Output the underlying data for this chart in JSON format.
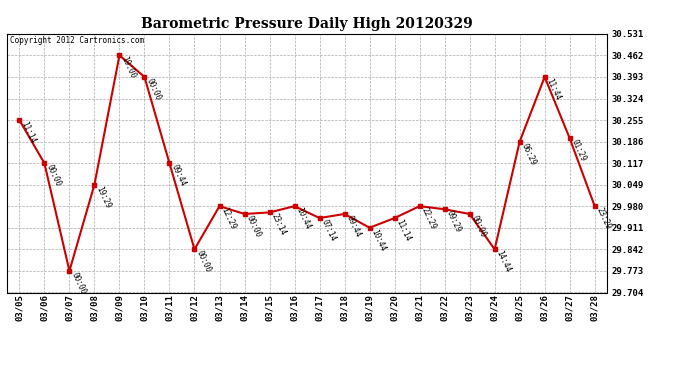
{
  "title": "Barometric Pressure Daily High 20120329",
  "copyright": "Copyright 2012 Cartronics.com",
  "background_color": "#ffffff",
  "line_color": "#cc0000",
  "marker_color": "#cc0000",
  "grid_color": "#aaaaaa",
  "text_color": "#000000",
  "ylim": [
    29.704,
    30.531
  ],
  "yticks": [
    29.704,
    29.773,
    29.842,
    29.911,
    29.98,
    30.049,
    30.117,
    30.186,
    30.255,
    30.324,
    30.393,
    30.462,
    30.531
  ],
  "dates": [
    "03/05",
    "03/06",
    "03/07",
    "03/08",
    "03/09",
    "03/10",
    "03/11",
    "03/12",
    "03/13",
    "03/14",
    "03/15",
    "03/16",
    "03/17",
    "03/18",
    "03/19",
    "03/20",
    "03/21",
    "03/22",
    "03/23",
    "03/24",
    "03/25",
    "03/26",
    "03/27",
    "03/28"
  ],
  "values": [
    30.255,
    30.117,
    29.773,
    30.049,
    30.462,
    30.393,
    30.117,
    29.842,
    29.98,
    29.955,
    29.96,
    29.98,
    29.942,
    29.955,
    29.911,
    29.942,
    29.98,
    29.97,
    29.955,
    29.842,
    30.186,
    30.393,
    30.197,
    29.98
  ],
  "annotations": [
    "11:14",
    "00:00",
    "00:00",
    "19:29",
    "19:00",
    "00:00",
    "09:44",
    "00:00",
    "12:29",
    "00:00",
    "23:14",
    "10:44",
    "07:14",
    "09:44",
    "10:44",
    "11:14",
    "22:29",
    "09:29",
    "00:00",
    "14:44",
    "06:29",
    "11:44",
    "01:29",
    "23:29"
  ]
}
